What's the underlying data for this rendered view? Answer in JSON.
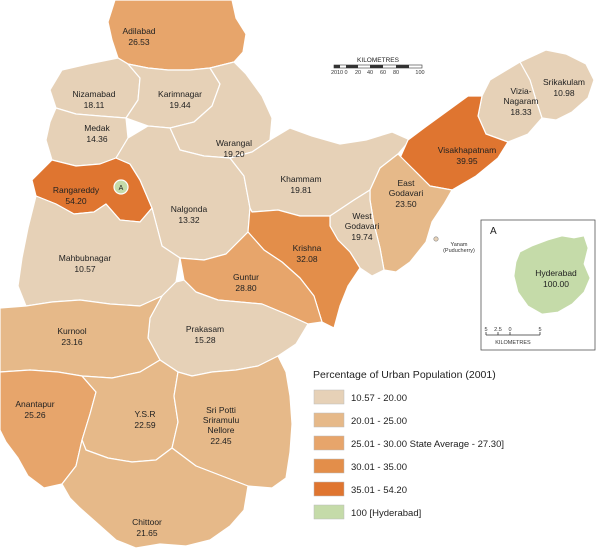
{
  "legend": {
    "title": "Percentage of Urban Population (2001)",
    "items": [
      {
        "label": "10.57 - 20.00",
        "color": "#e6d1b7"
      },
      {
        "label": "20.01 - 25.00",
        "color": "#e6b989"
      },
      {
        "label": "25.01 - 30.00 State Average - 27.30]",
        "color": "#e7a56b"
      },
      {
        "label": "30.01 - 35.00",
        "color": "#e38e4a"
      },
      {
        "label": "35.01 - 54.20",
        "color": "#df7530"
      },
      {
        "label": "100 [Hyderabad]",
        "color": "#c5dba9"
      }
    ]
  },
  "scale_bar": {
    "title": "KILOMETRES",
    "ticks": [
      "20",
      "10",
      "0",
      "20",
      "40",
      "60",
      "80",
      "100"
    ]
  },
  "districts": [
    {
      "name": "Adilabad",
      "value": "26.53",
      "color": "#e7a56b"
    },
    {
      "name": "Nizamabad",
      "value": "18.11",
      "color": "#e6d1b7"
    },
    {
      "name": "Karimnagar",
      "value": "19.44",
      "color": "#e6d1b7"
    },
    {
      "name": "Medak",
      "value": "14.36",
      "color": "#e6d1b7"
    },
    {
      "name": "Warangal",
      "value": "19.20",
      "color": "#e6d1b7"
    },
    {
      "name": "Rangareddy",
      "value": "54.20",
      "color": "#df7530"
    },
    {
      "name": "Nalgonda",
      "value": "13.32",
      "color": "#e6d1b7"
    },
    {
      "name": "Khammam",
      "value": "19.81",
      "color": "#e6d1b7"
    },
    {
      "name": "Mahbubnagar",
      "value": "10.57",
      "color": "#e6d1b7"
    },
    {
      "name": "Srikakulam",
      "value": "10.98",
      "color": "#e6d1b7"
    },
    {
      "name_lines": [
        "Vizia-",
        "Nagaram"
      ],
      "value": "18.33",
      "color": "#e6d1b7"
    },
    {
      "name": "Visakhapatnam",
      "value": "39.95",
      "color": "#df7530"
    },
    {
      "name_lines": [
        "East",
        "Godavari"
      ],
      "value": "23.50",
      "color": "#e6b989"
    },
    {
      "name_lines": [
        "West",
        "Godavari"
      ],
      "value": "19.74",
      "color": "#e6d1b7"
    },
    {
      "name": "Krishna",
      "value": "32.08",
      "color": "#e38e4a"
    },
    {
      "name": "Guntur",
      "value": "28.80",
      "color": "#e7a56b"
    },
    {
      "name": "Prakasam",
      "value": "15.28",
      "color": "#e6d1b7"
    },
    {
      "name": "Kurnool",
      "value": "23.16",
      "color": "#e6b989"
    },
    {
      "name": "Anantapur",
      "value": "25.26",
      "color": "#e7a56b"
    },
    {
      "name": "Y.S.R",
      "value": "22.59",
      "color": "#e6b989"
    },
    {
      "name_lines": [
        "Sri Potti",
        "Sriramulu",
        "Nellore"
      ],
      "value": "22.45",
      "color": "#e6b989"
    },
    {
      "name": "Chittoor",
      "value": "21.65",
      "color": "#e6b989"
    }
  ],
  "yanam": {
    "lines": [
      "Yanam",
      "(Puducherry)"
    ]
  },
  "marker": {
    "label": "A"
  },
  "inset": {
    "label": "A",
    "name": "Hyderabad",
    "value": "100.00",
    "color": "#c5dba9",
    "scale_ticks": [
      "5",
      "2.5",
      "0",
      "5"
    ],
    "scale_title": "KILOMETRES"
  }
}
